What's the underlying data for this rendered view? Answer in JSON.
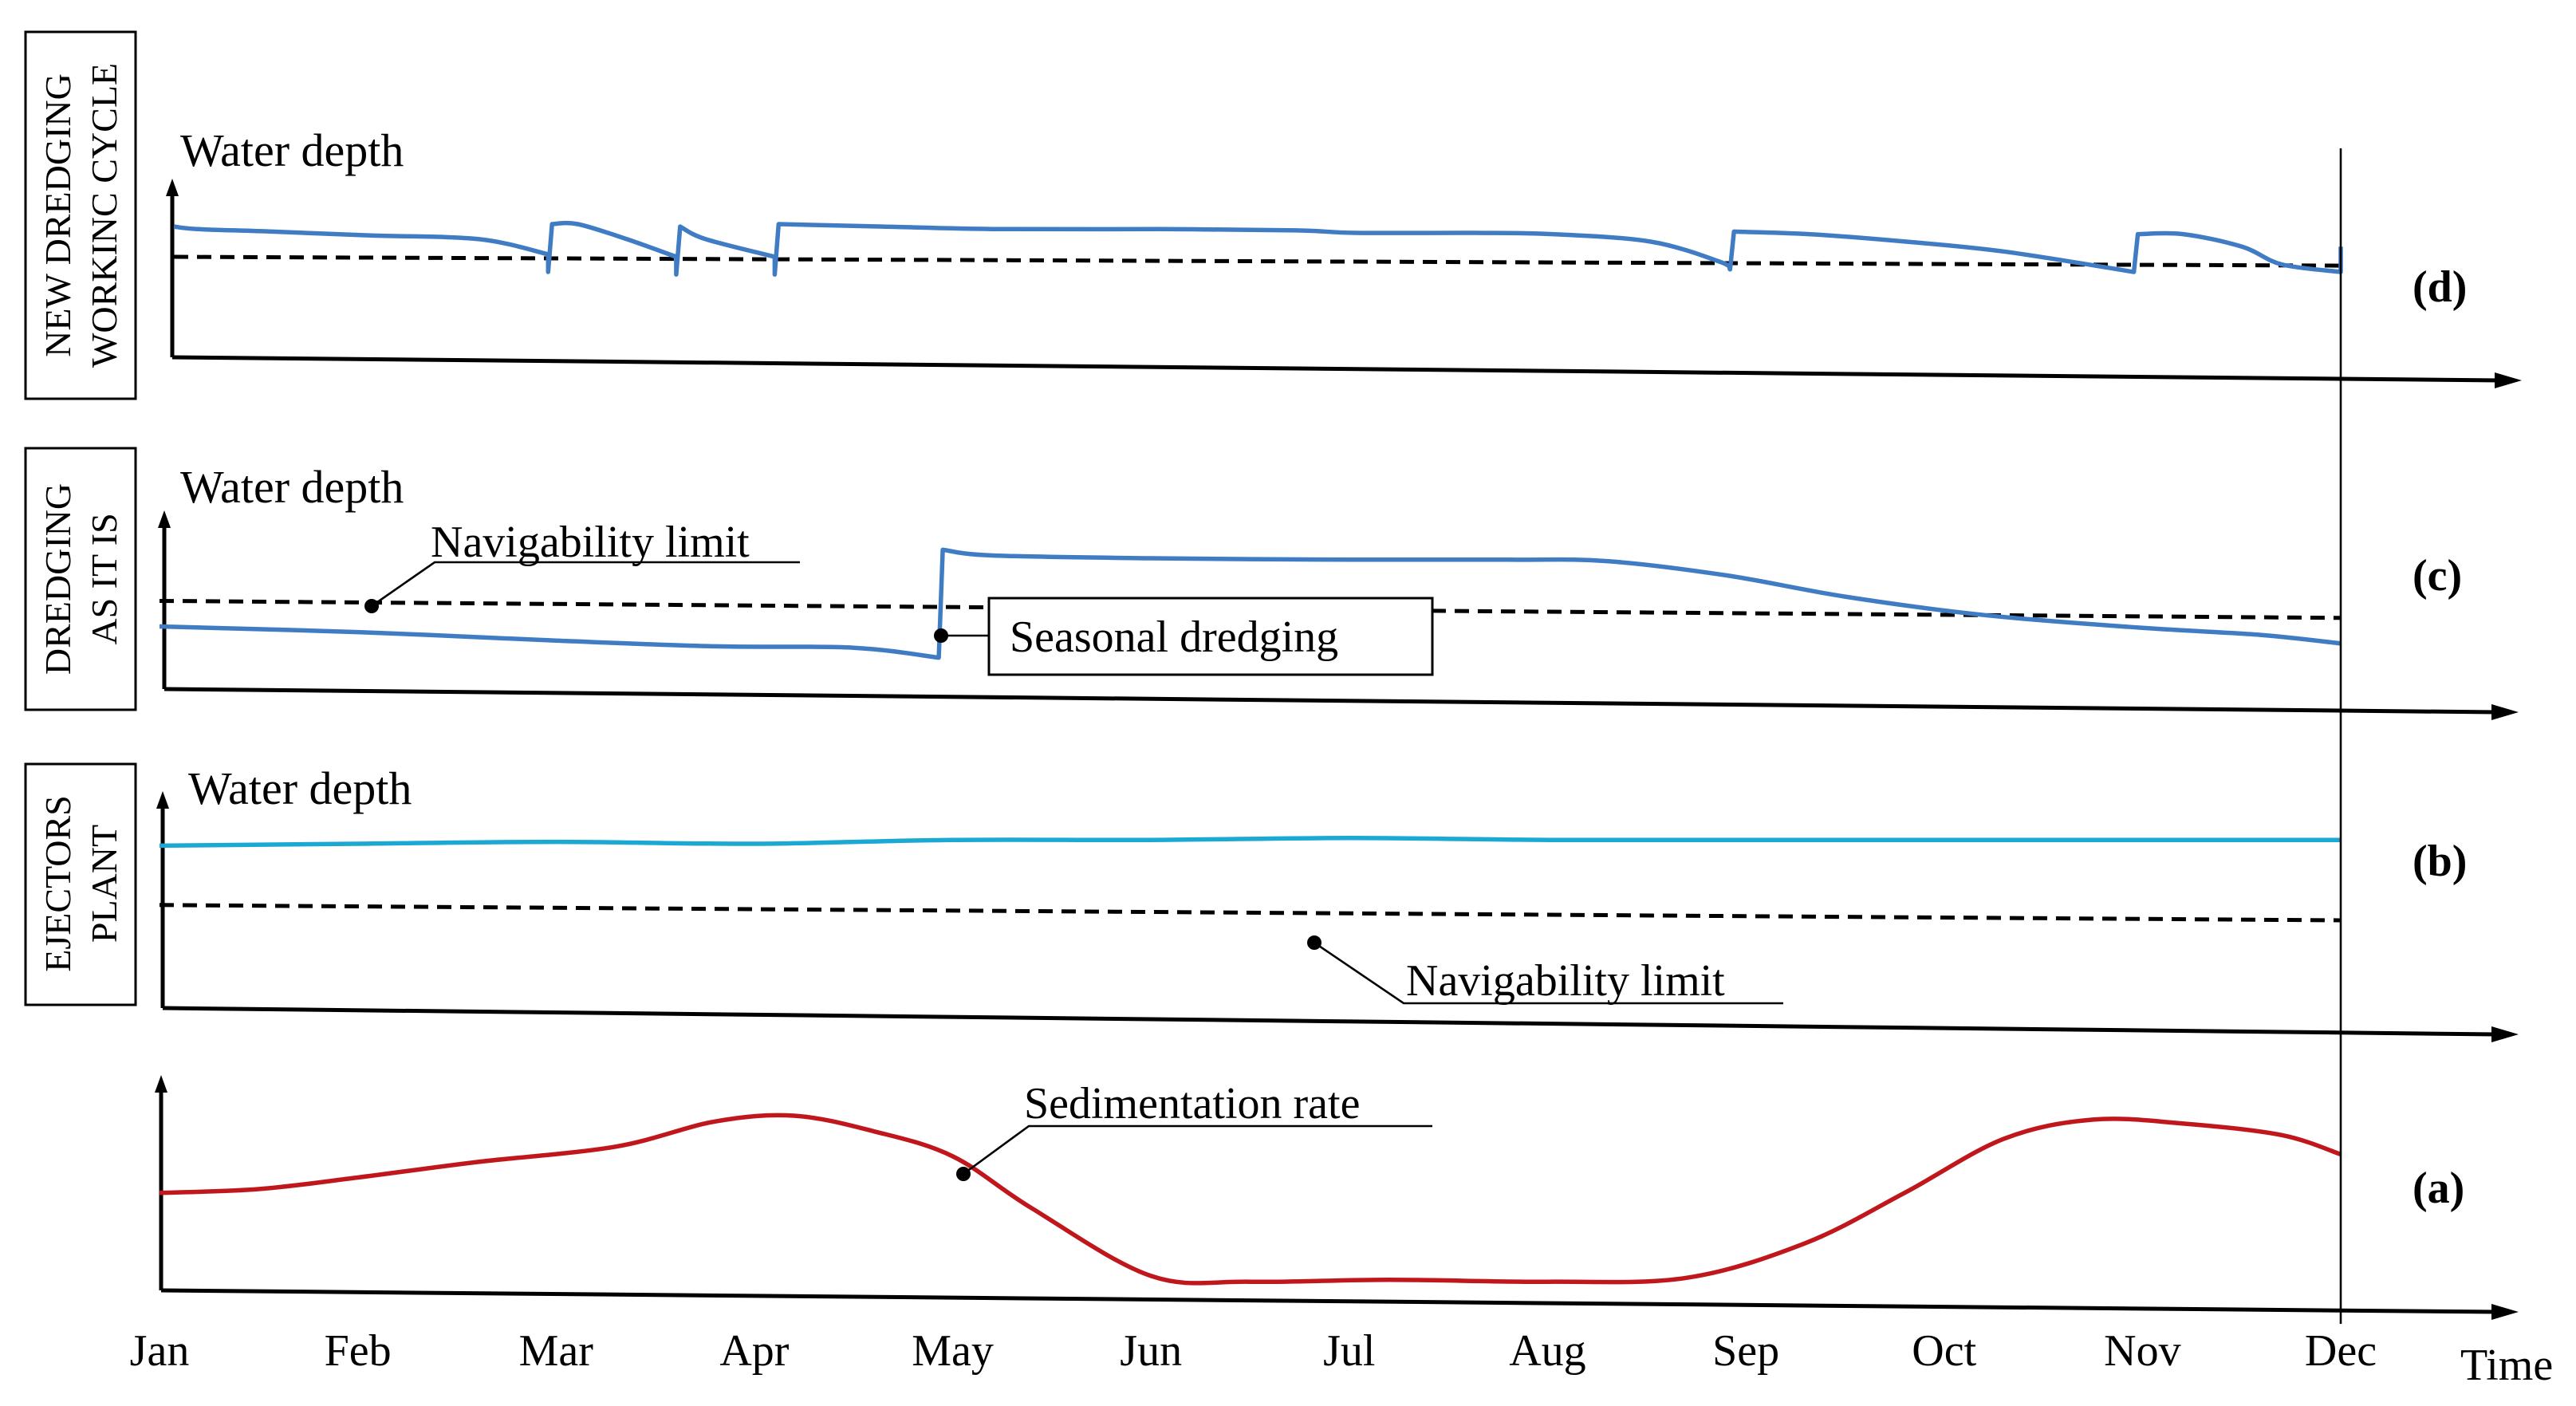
{
  "chart_data": {
    "type": "line",
    "title": "",
    "xlabel": "Time",
    "x_categories": [
      "Jan",
      "Feb",
      "Mar",
      "Apr",
      "May",
      "Jun",
      "Jul",
      "Aug",
      "Sep",
      "Oct",
      "Nov",
      "Dec"
    ],
    "panels": [
      {
        "id": "d",
        "tag": "(d)",
        "side_label": [
          "NEW DREDGING",
          "WORKINC CYCLE"
        ],
        "ylabel": "Water depth",
        "navigability_limit": [
          0.62,
          0.55
        ],
        "series": [
          {
            "name": "Water depth",
            "color": "#3f7cc4",
            "points": [
              [
                0,
                0.86
              ],
              [
                0.12,
                0.84
              ],
              [
                0.5,
                0.82
              ],
              [
                1.0,
                0.79
              ],
              [
                1.55,
                0.76
              ],
              [
                1.9,
                0.64
              ],
              [
                1.9,
                0.5
              ],
              [
                1.92,
                0.88
              ],
              [
                2.05,
                0.88
              ],
              [
                2.3,
                0.76
              ],
              [
                2.55,
                0.62
              ],
              [
                2.55,
                0.48
              ],
              [
                2.57,
                0.86
              ],
              [
                2.7,
                0.76
              ],
              [
                3.05,
                0.62
              ],
              [
                3.05,
                0.48
              ],
              [
                3.07,
                0.88
              ],
              [
                3.6,
                0.86
              ],
              [
                4.2,
                0.84
              ],
              [
                5.0,
                0.84
              ],
              [
                5.7,
                0.83
              ],
              [
                6.0,
                0.81
              ],
              [
                6.6,
                0.81
              ],
              [
                7.0,
                0.8
              ],
              [
                7.5,
                0.74
              ],
              [
                7.85,
                0.58
              ],
              [
                7.9,
                0.52
              ],
              [
                7.92,
                0.82
              ],
              [
                8.3,
                0.8
              ],
              [
                8.8,
                0.74
              ],
              [
                9.3,
                0.66
              ],
              [
                9.95,
                0.5
              ],
              [
                9.97,
                0.8
              ],
              [
                10.2,
                0.8
              ],
              [
                10.5,
                0.7
              ],
              [
                10.7,
                0.56
              ],
              [
                11.0,
                0.5
              ],
              [
                11.0,
                0.7
              ]
            ]
          }
        ]
      },
      {
        "id": "c",
        "tag": "(c)",
        "side_label": [
          "DREDGING",
          "AS IT IS"
        ],
        "ylabel": "Water depth",
        "navigability_limit": [
          0.52,
          0.4
        ],
        "annotations": [
          {
            "text": "Navigability limit",
            "underline": true
          },
          {
            "text": "Seasonal dredging",
            "boxed": true
          }
        ],
        "series": [
          {
            "name": "Water depth",
            "color": "#3f7cc4",
            "points": [
              [
                0,
                0.34
              ],
              [
                1.0,
                0.3
              ],
              [
                2.0,
                0.24
              ],
              [
                2.8,
                0.2
              ],
              [
                3.5,
                0.19
              ],
              [
                3.93,
                0.12
              ],
              [
                3.95,
                0.88
              ],
              [
                4.2,
                0.84
              ],
              [
                5.0,
                0.82
              ],
              [
                6.0,
                0.81
              ],
              [
                6.8,
                0.81
              ],
              [
                7.3,
                0.8
              ],
              [
                7.9,
                0.7
              ],
              [
                8.5,
                0.55
              ],
              [
                9.2,
                0.42
              ],
              [
                10.0,
                0.33
              ],
              [
                10.6,
                0.28
              ],
              [
                11.0,
                0.22
              ]
            ]
          }
        ]
      },
      {
        "id": "b",
        "tag": "(b)",
        "side_label": [
          "EJECTORS",
          "PLANT"
        ],
        "ylabel": "Water depth",
        "navigability_limit": [
          0.48,
          0.4
        ],
        "annotations": [
          {
            "text": "Navigability limit",
            "underline": true
          }
        ],
        "series": [
          {
            "name": "Water depth",
            "color": "#1ba9d4",
            "points": [
              [
                0,
                0.79
              ],
              [
                1.0,
                0.8
              ],
              [
                2.0,
                0.81
              ],
              [
                3.0,
                0.8
              ],
              [
                4.0,
                0.82
              ],
              [
                5.0,
                0.82
              ],
              [
                6.0,
                0.83
              ],
              [
                7.0,
                0.82
              ],
              [
                8.0,
                0.82
              ],
              [
                9.0,
                0.82
              ],
              [
                10.0,
                0.82
              ],
              [
                11.0,
                0.82
              ]
            ]
          }
        ]
      },
      {
        "id": "a",
        "tag": "(a)",
        "side_label": [],
        "ylabel": "",
        "annotations": [
          {
            "text": "Sedimentation rate",
            "underline": true
          }
        ],
        "series": [
          {
            "name": "Sedimentation rate",
            "color": "#c0171c",
            "points": [
              [
                0,
                0.48
              ],
              [
                0.5,
                0.5
              ],
              [
                1.0,
                0.56
              ],
              [
                1.6,
                0.64
              ],
              [
                2.3,
                0.72
              ],
              [
                2.8,
                0.85
              ],
              [
                3.2,
                0.88
              ],
              [
                3.6,
                0.8
              ],
              [
                4.0,
                0.67
              ],
              [
                4.4,
                0.4
              ],
              [
                5.0,
                0.05
              ],
              [
                5.5,
                0.02
              ],
              [
                6.2,
                0.03
              ],
              [
                7.0,
                0.02
              ],
              [
                7.7,
                0.04
              ],
              [
                8.3,
                0.22
              ],
              [
                8.8,
                0.48
              ],
              [
                9.3,
                0.76
              ],
              [
                9.75,
                0.86
              ],
              [
                10.2,
                0.84
              ],
              [
                10.7,
                0.78
              ],
              [
                11.0,
                0.68
              ]
            ]
          }
        ]
      }
    ]
  }
}
